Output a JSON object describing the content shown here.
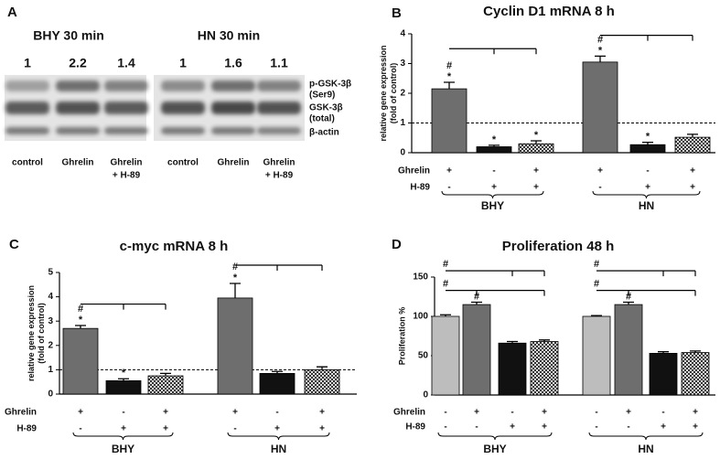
{
  "blot": {
    "panel": "A",
    "groups": [
      {
        "title": "BHY 30 min",
        "ratios": [
          "1",
          "2.2",
          "1.4"
        ],
        "lanes": [
          [
            "control"
          ],
          [
            "Ghrelin"
          ],
          [
            "Ghrelin",
            "+ H-89"
          ]
        ]
      },
      {
        "title": "HN 30 min",
        "ratios": [
          "1",
          "1.6",
          "1.1"
        ],
        "lanes": [
          [
            "control"
          ],
          [
            "Ghrelin"
          ],
          [
            "Ghrelin",
            "+ H-89"
          ]
        ]
      }
    ],
    "bands": [
      [
        "p-GSK-3β",
        "(Ser9)"
      ],
      [
        "GSK-3β",
        "(total)"
      ],
      [
        "β-actin"
      ]
    ]
  },
  "chart_data": [
    {
      "type": "bar",
      "panel": "B",
      "title": "Cyclin D1 mRNA 8 h",
      "ylabel": [
        "relative gene expression",
        "(fold of control)"
      ],
      "groups": [
        "BHY",
        "HN"
      ],
      "conditions": [
        {
          "name": "Ghrelin",
          "signs": [
            "+",
            "-",
            "+",
            "+",
            "-",
            "+"
          ]
        },
        {
          "name": "H-89",
          "signs": [
            "-",
            "+",
            "+",
            "-",
            "+",
            "+"
          ]
        }
      ],
      "values": [
        2.15,
        0.2,
        0.3,
        3.05,
        0.27,
        0.52
      ],
      "errors": [
        0.22,
        0.05,
        0.1,
        0.2,
        0.08,
        0.1
      ],
      "bar_fills": [
        "#6e6e6e",
        "#111111",
        "checkered",
        "#6e6e6e",
        "#111111",
        "checkered"
      ],
      "marks": [
        [
          "#",
          "*"
        ],
        [
          "*"
        ],
        [
          "*"
        ],
        [
          "#",
          "*"
        ],
        [
          "*"
        ],
        []
      ],
      "reference_line": 1,
      "ylim": [
        0,
        4
      ],
      "yticks": [
        0,
        1,
        2,
        3,
        4
      ]
    },
    {
      "type": "bar",
      "panel": "C",
      "title": "c-myc mRNA 8 h",
      "ylabel": [
        "relative gene expression",
        "(fold of control)"
      ],
      "groups": [
        "BHY",
        "HN"
      ],
      "conditions": [
        {
          "name": "Ghrelin",
          "signs": [
            "+",
            "-",
            "+",
            "+",
            "-",
            "+"
          ]
        },
        {
          "name": "H-89",
          "signs": [
            "-",
            "+",
            "+",
            "-",
            "+",
            "+"
          ]
        }
      ],
      "values": [
        2.7,
        0.55,
        0.75,
        3.95,
        0.85,
        1.0
      ],
      "errors": [
        0.12,
        0.08,
        0.1,
        0.6,
        0.08,
        0.12
      ],
      "bar_fills": [
        "#6e6e6e",
        "#111111",
        "checkered",
        "#6e6e6e",
        "#111111",
        "checkered"
      ],
      "marks": [
        [
          "#",
          "*"
        ],
        [
          "*"
        ],
        [],
        [
          "#",
          "*"
        ],
        [],
        []
      ],
      "reference_line": 1,
      "ylim": [
        0,
        5
      ],
      "yticks": [
        0,
        1,
        2,
        3,
        4,
        5
      ]
    },
    {
      "type": "bar",
      "panel": "D",
      "title": "Proliferation 48 h",
      "ylabel": [
        "Proliferation %"
      ],
      "groups": [
        "BHY",
        "HN"
      ],
      "conditions": [
        {
          "name": "Ghrelin",
          "signs": [
            "-",
            "+",
            "-",
            "+",
            "-",
            "+",
            "-",
            "+"
          ]
        },
        {
          "name": "H-89",
          "signs": [
            "-",
            "-",
            "+",
            "+",
            "-",
            "-",
            "+",
            "+"
          ]
        }
      ],
      "values": [
        100,
        115,
        66,
        68,
        100,
        115,
        53,
        54
      ],
      "errors": [
        2,
        3,
        2,
        2,
        1,
        3,
        2,
        2
      ],
      "bar_fills": [
        "#bdbdbd",
        "#6e6e6e",
        "#111111",
        "checkered",
        "#bdbdbd",
        "#6e6e6e",
        "#111111",
        "checkered"
      ],
      "marks": [
        [],
        [
          "#"
        ],
        [],
        [],
        [],
        [
          "#"
        ],
        [],
        []
      ],
      "bracket_labels": [
        "#",
        "#",
        "#",
        "#"
      ],
      "ylim": [
        0,
        150
      ],
      "yticks": [
        0,
        50,
        100,
        150
      ]
    }
  ]
}
